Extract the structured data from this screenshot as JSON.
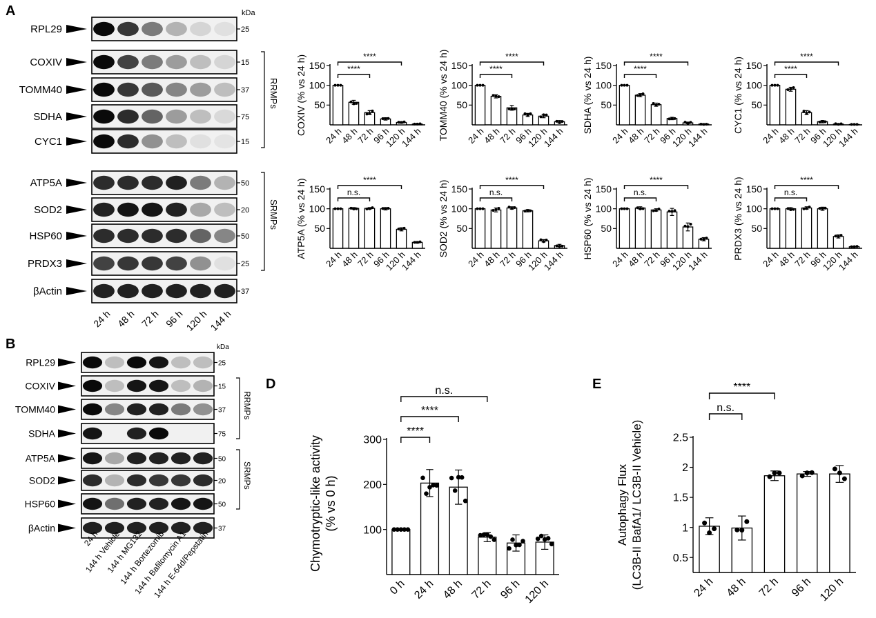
{
  "panel_letters": {
    "a": "A",
    "b": "B",
    "d": "D",
    "e": "E"
  },
  "kda_label": "kDa",
  "blot_a": {
    "lanes": [
      "24 h",
      "48 h",
      "72 h",
      "96 h",
      "120 h",
      "144 h"
    ],
    "rows": [
      {
        "label": "RPL29",
        "kda": "25",
        "bands": [
          1.0,
          0.8,
          0.5,
          0.25,
          0.1,
          0.05
        ]
      },
      {
        "label": "COXIV",
        "kda": "15",
        "bands": [
          1.0,
          0.75,
          0.5,
          0.35,
          0.2,
          0.1
        ]
      },
      {
        "label": "TOMM40",
        "kda": "37",
        "bands": [
          1.0,
          0.8,
          0.65,
          0.45,
          0.35,
          0.2
        ]
      },
      {
        "label": "SDHA",
        "kda": "75",
        "bands": [
          1.0,
          0.85,
          0.6,
          0.35,
          0.2,
          0.08
        ]
      },
      {
        "label": "CYC1",
        "kda": "15",
        "bands": [
          1.0,
          0.85,
          0.4,
          0.2,
          0.05,
          0.03
        ]
      },
      {
        "label": "ATP5A",
        "kda": "50",
        "bands": [
          0.85,
          0.85,
          0.85,
          0.9,
          0.5,
          0.25
        ]
      },
      {
        "label": "SOD2",
        "kda": "20",
        "bands": [
          0.9,
          0.95,
          0.95,
          0.9,
          0.3,
          0.2
        ]
      },
      {
        "label": "HSP60",
        "kda": "50",
        "bands": [
          0.85,
          0.85,
          0.85,
          0.85,
          0.6,
          0.45
        ]
      },
      {
        "label": "PRDX3",
        "kda": "25",
        "bands": [
          0.75,
          0.8,
          0.8,
          0.75,
          0.4,
          0.05
        ]
      },
      {
        "label": "βActin",
        "kda": "37",
        "bands": [
          0.9,
          0.9,
          0.9,
          0.9,
          0.9,
          0.9
        ]
      }
    ],
    "group_rrmps": "RRMPs",
    "group_srmps": "SRMPs"
  },
  "blot_b": {
    "lanes": [
      "24 h",
      "144 h Vehicle",
      "144 h MG132",
      "144 h Bortezomib",
      "144 h Bafilomycin A1",
      "144 h E-64d/Pepstatin"
    ],
    "rows": [
      {
        "label": "RPL29",
        "kda": "25",
        "bands": [
          1.0,
          0.2,
          1.0,
          0.95,
          0.2,
          0.2
        ]
      },
      {
        "label": "COXIV",
        "kda": "15",
        "bands": [
          1.0,
          0.2,
          0.95,
          0.95,
          0.2,
          0.25
        ]
      },
      {
        "label": "TOMM40",
        "kda": "37",
        "bands": [
          1.0,
          0.45,
          0.9,
          0.9,
          0.5,
          0.4
        ]
      },
      {
        "label": "SDHA",
        "kda": "75",
        "bands": [
          0.95,
          0.0,
          0.9,
          1.0,
          0.0,
          0.0
        ]
      },
      {
        "label": "ATP5A",
        "kda": "50",
        "bands": [
          0.95,
          0.3,
          0.9,
          0.9,
          0.9,
          0.9
        ]
      },
      {
        "label": "SOD2",
        "kda": "20",
        "bands": [
          0.85,
          0.25,
          0.85,
          0.8,
          0.8,
          0.85
        ]
      },
      {
        "label": "HSP60",
        "kda": "50",
        "bands": [
          0.95,
          0.55,
          0.9,
          0.9,
          0.95,
          0.95
        ]
      },
      {
        "label": "βActin",
        "kda": "37",
        "bands": [
          0.9,
          0.9,
          0.9,
          0.9,
          0.9,
          0.9
        ]
      }
    ],
    "group_rrmps": "RRMPs",
    "group_srmps": "SRMPs"
  },
  "chart_data": [
    {
      "id": "COXIV",
      "type": "bar",
      "ylabel": "COXIV (% vs 24 h)",
      "ylim": [
        0,
        150
      ],
      "yticks": [
        50,
        100,
        150
      ],
      "categories": [
        "24 h",
        "48 h",
        "72 h",
        "96 h",
        "120 h",
        "144 h"
      ],
      "values": [
        100,
        57,
        31,
        15,
        6,
        2
      ],
      "errors": [
        0,
        5,
        5,
        3,
        2,
        1
      ],
      "sig": [
        {
          "from": "24 h",
          "to": "72 h",
          "label": "****"
        },
        {
          "from": "24 h",
          "to": "120 h",
          "label": "****"
        }
      ]
    },
    {
      "id": "TOMM40",
      "type": "bar",
      "ylabel": "TOMM40 (% vs 24 h)",
      "ylim": [
        0,
        150
      ],
      "yticks": [
        50,
        100,
        150
      ],
      "categories": [
        "24 h",
        "48 h",
        "72 h",
        "96 h",
        "120 h",
        "144 h"
      ],
      "values": [
        100,
        72,
        43,
        25,
        22,
        8
      ],
      "errors": [
        0,
        4,
        6,
        4,
        4,
        3
      ],
      "sig": [
        {
          "from": "24 h",
          "to": "72 h",
          "label": "****"
        },
        {
          "from": "24 h",
          "to": "120 h",
          "label": "****"
        }
      ]
    },
    {
      "id": "SDHA",
      "type": "bar",
      "ylabel": "SDHA (% vs 24 h)",
      "ylim": [
        0,
        150
      ],
      "yticks": [
        50,
        100,
        150
      ],
      "categories": [
        "24 h",
        "48 h",
        "72 h",
        "96 h",
        "120 h",
        "144 h"
      ],
      "values": [
        100,
        75,
        51,
        16,
        5,
        2
      ],
      "errors": [
        0,
        4,
        4,
        3,
        2,
        1
      ],
      "sig": [
        {
          "from": "24 h",
          "to": "72 h",
          "label": "****"
        },
        {
          "from": "24 h",
          "to": "120 h",
          "label": "****"
        }
      ]
    },
    {
      "id": "CYC1",
      "type": "bar",
      "ylabel": "CYC1 (% vs 24 h)",
      "ylim": [
        0,
        150
      ],
      "yticks": [
        50,
        100,
        150
      ],
      "categories": [
        "24 h",
        "48 h",
        "72 h",
        "96 h",
        "120 h",
        "144 h"
      ],
      "values": [
        100,
        90,
        31,
        8,
        2,
        1
      ],
      "errors": [
        0,
        5,
        5,
        3,
        1,
        0
      ],
      "sig": [
        {
          "from": "24 h",
          "to": "72 h",
          "label": "****"
        },
        {
          "from": "24 h",
          "to": "120 h",
          "label": "****"
        }
      ]
    },
    {
      "id": "ATP5A",
      "type": "bar",
      "ylabel": "ATP5A (% vs 24 h)",
      "ylim": [
        0,
        150
      ],
      "yticks": [
        50,
        100,
        150
      ],
      "categories": [
        "24 h",
        "48 h",
        "72 h",
        "96 h",
        "120 h",
        "144 h"
      ],
      "values": [
        100,
        101,
        101,
        100,
        48,
        15
      ],
      "errors": [
        0,
        2,
        2,
        3,
        4,
        2
      ],
      "sig": [
        {
          "from": "24 h",
          "to": "72 h",
          "label": "n.s."
        },
        {
          "from": "24 h",
          "to": "120 h",
          "label": "****"
        }
      ]
    },
    {
      "id": "SOD2",
      "type": "bar",
      "ylabel": "SOD2 (% vs 24 h)",
      "ylim": [
        0,
        150
      ],
      "yticks": [
        50,
        100,
        150
      ],
      "categories": [
        "24 h",
        "48 h",
        "72 h",
        "96 h",
        "120 h",
        "144 h"
      ],
      "values": [
        100,
        97,
        102,
        95,
        19,
        7
      ],
      "errors": [
        0,
        5,
        3,
        3,
        3,
        3
      ],
      "sig": [
        {
          "from": "24 h",
          "to": "72 h",
          "label": "n.s."
        },
        {
          "from": "24 h",
          "to": "120 h",
          "label": "****"
        }
      ]
    },
    {
      "id": "HSP60",
      "type": "bar",
      "ylabel": "HSP60 (% vs 24 h)",
      "ylim": [
        0,
        150
      ],
      "yticks": [
        50,
        100,
        150
      ],
      "categories": [
        "24 h",
        "48 h",
        "72 h",
        "96 h",
        "120 h",
        "144 h"
      ],
      "values": [
        100,
        102,
        97,
        92,
        54,
        23
      ],
      "errors": [
        0,
        3,
        3,
        9,
        10,
        4
      ],
      "sig": [
        {
          "from": "24 h",
          "to": "72 h",
          "label": "n.s."
        },
        {
          "from": "24 h",
          "to": "120 h",
          "label": "****"
        }
      ]
    },
    {
      "id": "PRDX3",
      "type": "bar",
      "ylabel": "PRDX3 (% vs 24 h)",
      "ylim": [
        0,
        150
      ],
      "yticks": [
        50,
        100,
        150
      ],
      "categories": [
        "24 h",
        "48 h",
        "72 h",
        "96 h",
        "120 h",
        "144 h"
      ],
      "values": [
        100,
        100,
        102,
        100,
        30,
        4
      ],
      "errors": [
        0,
        3,
        3,
        4,
        4,
        1
      ],
      "sig": [
        {
          "from": "24 h",
          "to": "72 h",
          "label": "n.s."
        },
        {
          "from": "24 h",
          "to": "120 h",
          "label": "****"
        }
      ]
    },
    {
      "id": "D",
      "type": "bar",
      "ylabel": [
        "Chymotryptic-like activity",
        "(% vs 0 h)"
      ],
      "ylim": [
        0,
        300
      ],
      "yticks": [
        100,
        200,
        300
      ],
      "categories": [
        "0 h",
        "24 h",
        "48 h",
        "72 h",
        "96 h",
        "120 h"
      ],
      "values": [
        100,
        203,
        194,
        83,
        70,
        72
      ],
      "errors": [
        0,
        30,
        38,
        10,
        18,
        16
      ],
      "sig": [
        {
          "from": "0 h",
          "to": "24 h",
          "label": "****"
        },
        {
          "from": "0 h",
          "to": "48 h",
          "label": "****"
        },
        {
          "from": "0 h",
          "to": "72 h",
          "label": "n.s."
        }
      ]
    },
    {
      "id": "E",
      "type": "bar",
      "ylabel": [
        "Autophagy Flux",
        "(LC3B-II BafA1/ LC3B-II Vehicle)"
      ],
      "ylim": [
        0.25,
        2.5
      ],
      "yticks": [
        0.5,
        1.0,
        1.5,
        2.0,
        2.5
      ],
      "categories": [
        "24 h",
        "48 h",
        "72 h",
        "96 h",
        "120 h"
      ],
      "values": [
        1.02,
        0.99,
        1.86,
        1.89,
        1.89
      ],
      "errors": [
        0.14,
        0.2,
        0.08,
        0.04,
        0.14
      ],
      "sig": [
        {
          "from": "24 h",
          "to": "48 h",
          "label": "n.s."
        },
        {
          "from": "24 h",
          "to": "72 h",
          "label": "****"
        }
      ]
    }
  ]
}
